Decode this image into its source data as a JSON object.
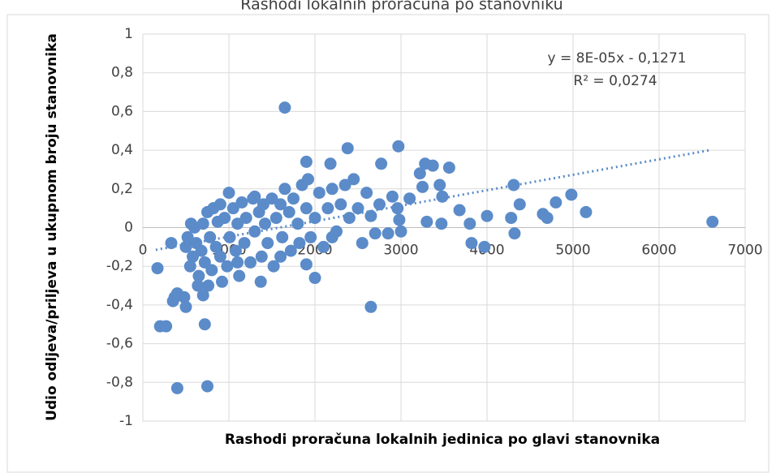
{
  "chart_data": {
    "type": "scatter",
    "title": "Rashodi lokalnih proračuna po stanovniku",
    "x_label": "Rashodi proračuna lokalnih jedinica po glavi stanovnika",
    "y_label": "Udio odljeva/priljeva u ukupnom broju stanovnika",
    "color": "#5b8bc9",
    "x": [
      170,
      200,
      270,
      330,
      350,
      370,
      400,
      400,
      720,
      750,
      500,
      480,
      1650,
      2970,
      2380,
      1900,
      2180,
      2770,
      3280,
      3370,
      3560,
      3220,
      2650,
      2000,
      1900,
      1370,
      3680,
      3800,
      3820,
      3970,
      4000,
      4280,
      4310,
      4320,
      4380,
      4650,
      4700,
      4800,
      4980,
      5150,
      6620,
      3450,
      3480,
      3470,
      3250,
      3300,
      2900,
      2960,
      2980,
      2850,
      3100,
      3000,
      500,
      520,
      550,
      580,
      600,
      620,
      650,
      680,
      700,
      720,
      750,
      760,
      780,
      800,
      820,
      850,
      870,
      900,
      920,
      950,
      980,
      1000,
      1010,
      1050,
      1080,
      1100,
      1120,
      1150,
      1180,
      1200,
      1250,
      1280,
      1300,
      1350,
      1380,
      1400,
      1420,
      1450,
      1500,
      1520,
      1550,
      1600,
      1620,
      1650,
      1700,
      1720,
      1750,
      1800,
      1820,
      1850,
      1900,
      1920,
      1950,
      2000,
      2050,
      2100,
      2150,
      2200,
      2250,
      2300,
      2350,
      2400,
      2450,
      2500,
      2550,
      2600,
      2650,
      2700,
      2750,
      1300,
      1100,
      900,
      1600,
      2200,
      640,
      560,
      700
    ],
    "values": [
      -0.21,
      -0.51,
      -0.51,
      -0.08,
      -0.38,
      -0.36,
      -0.34,
      -0.83,
      -0.5,
      -0.82,
      -0.41,
      -0.36,
      0.62,
      0.42,
      0.41,
      0.34,
      0.33,
      0.33,
      0.33,
      0.32,
      0.31,
      0.28,
      -0.41,
      -0.26,
      -0.19,
      -0.28,
      0.09,
      0.02,
      -0.08,
      -0.1,
      0.06,
      0.05,
      0.22,
      -0.03,
      0.12,
      0.07,
      0.05,
      0.13,
      0.17,
      0.08,
      0.03,
      0.22,
      0.16,
      0.02,
      0.21,
      0.03,
      0.16,
      0.1,
      0.04,
      -0.03,
      0.15,
      -0.02,
      -0.1,
      -0.05,
      -0.2,
      -0.15,
      0,
      -0.08,
      -0.25,
      -0.12,
      0.02,
      -0.18,
      0.08,
      -0.3,
      -0.05,
      -0.22,
      0.1,
      -0.1,
      0.03,
      -0.15,
      -0.28,
      0.05,
      -0.2,
      0.18,
      -0.05,
      0.1,
      -0.12,
      0.02,
      -0.25,
      0.13,
      -0.08,
      0.05,
      -0.18,
      0.15,
      -0.02,
      0.08,
      -0.15,
      0.12,
      0.02,
      -0.08,
      0.15,
      -0.2,
      0.05,
      0.12,
      -0.05,
      0.2,
      0.08,
      -0.12,
      0.15,
      0.02,
      -0.08,
      0.22,
      0.1,
      0.25,
      -0.05,
      0.05,
      0.18,
      -0.1,
      0.1,
      0.2,
      -0.02,
      0.12,
      0.22,
      0.05,
      0.25,
      0.1,
      -0.08,
      0.18,
      0.06,
      -0.03,
      0.12,
      0.16,
      -0.18,
      0.12,
      -0.15,
      -0.05,
      -0.3,
      0.02,
      -0.35
    ],
    "xlim": [
      0,
      7000
    ],
    "xticks": [
      0,
      1000,
      2000,
      3000,
      4000,
      5000,
      6000,
      7000
    ],
    "ylim": [
      -1,
      1
    ],
    "yticks": [
      {
        "value": -1,
        "label": "-1"
      },
      {
        "value": -0.8,
        "label": "-0,8"
      },
      {
        "value": -0.6,
        "label": "-0,6"
      },
      {
        "value": -0.4,
        "label": "-0,4"
      },
      {
        "value": -0.2,
        "label": "-0,2"
      },
      0,
      {
        "value": 0.2,
        "label": "0,2"
      },
      {
        "value": 0.4,
        "label": "0,4"
      },
      {
        "value": 0.6,
        "label": "0,6"
      },
      {
        "value": 0.8,
        "label": "0,8"
      },
      1
    ],
    "grid": true,
    "trendline": {
      "slope": 8e-05,
      "intercept": -0.1271,
      "x_range": [
        150,
        6600
      ],
      "equation": "y = 8E-05x - 0,1271",
      "r_squared": "R² = 0,0274"
    }
  }
}
